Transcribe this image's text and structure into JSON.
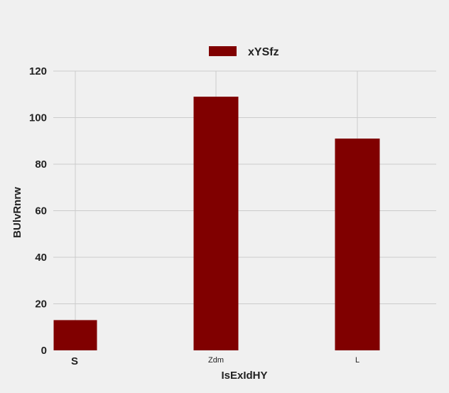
{
  "chart_data": {
    "type": "bar",
    "title": "",
    "xlabel": "IsExIdHY",
    "ylabel": "BUlvRnrw",
    "categories": [
      "S",
      "Zdm",
      "L"
    ],
    "series": [
      {
        "name": "xYSfz",
        "values": [
          13,
          109,
          91
        ]
      }
    ],
    "ylim": [
      0,
      120
    ],
    "yticks": [
      0,
      20,
      40,
      60,
      80,
      100,
      120
    ],
    "grid": true,
    "legend_position": "top-center",
    "bar_color": "#800000",
    "grid_color": "#cbcbcb",
    "background_color": "#f0f0f0"
  }
}
